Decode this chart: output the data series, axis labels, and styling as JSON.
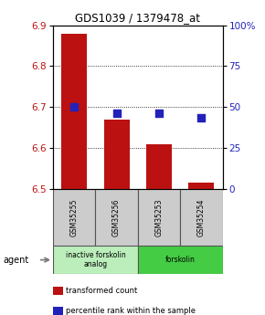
{
  "title": "GDS1039 / 1379478_at",
  "samples": [
    "GSM35255",
    "GSM35256",
    "GSM35253",
    "GSM35254"
  ],
  "bar_values": [
    6.88,
    6.67,
    6.61,
    6.515
  ],
  "scatter_values": [
    6.7,
    6.685,
    6.684,
    6.675
  ],
  "bar_color": "#bb1111",
  "scatter_color": "#2222bb",
  "ylim": [
    6.5,
    6.9
  ],
  "yticks": [
    6.5,
    6.6,
    6.7,
    6.8,
    6.9
  ],
  "y2ticks": [
    0,
    25,
    50,
    75,
    100
  ],
  "y2labels": [
    "0",
    "25",
    "50",
    "75",
    "100%"
  ],
  "groups": [
    {
      "label": "inactive forskolin\nanalog",
      "color": "#bbeebb",
      "span": [
        0,
        2
      ]
    },
    {
      "label": "forskolin",
      "color": "#44cc44",
      "span": [
        2,
        4
      ]
    }
  ],
  "legend_items": [
    {
      "color": "#bb1111",
      "label": "transformed count"
    },
    {
      "color": "#2222bb",
      "label": "percentile rank within the sample"
    }
  ],
  "bar_width": 0.6,
  "scatter_size": 30
}
